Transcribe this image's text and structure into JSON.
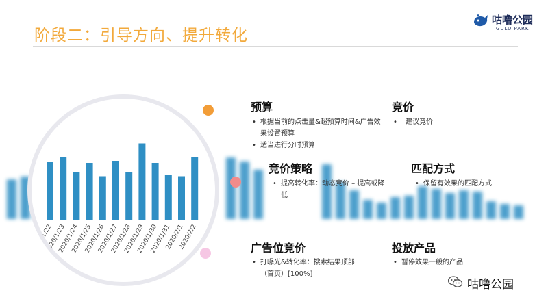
{
  "header": {
    "title": "阶段二：引导方向、提升转化",
    "logo_name": "咕噜公园",
    "logo_sub": "GULU PARK",
    "logo_icon": "whale-icon"
  },
  "sections": {
    "budget": {
      "title": "预算",
      "items": [
        "根据当前的点击量&超预算时间&广告效果设置预算",
        "适当进行分时预算"
      ]
    },
    "bidding": {
      "title": "竞价",
      "items": [
        "建议竞价"
      ]
    },
    "bid_strategy": {
      "title": "竞价策略",
      "items": [
        "提高转化率：动态竞价 – 提高或降低"
      ]
    },
    "match_type": {
      "title": "匹配方式",
      "items": [
        "保留有效果的匹配方式"
      ]
    },
    "placement_bid": {
      "title": "广告位竞价",
      "items": [
        "打曝光&转化率：搜索结果顶部（首页）[100%]"
      ]
    },
    "products": {
      "title": "投放产品",
      "items": [
        "暂停效果一般的产品"
      ]
    }
  },
  "footer": {
    "icon": "wechat-icon",
    "text": "咕噜公园"
  },
  "colors": {
    "accent": "#f2a93b",
    "bar": "#2f8fc4",
    "dot1": "#f29d38",
    "dot2": "#f28b8b",
    "dot3": "#f6c7e4"
  },
  "chart_data": {
    "type": "bar",
    "categories": [
      "2020/1/22",
      "2020/1/23",
      "2020/1/24",
      "2020/1/25",
      "2020/1/26",
      "2020/1/27",
      "2020/1/28",
      "2020/1/29",
      "2020/1/30",
      "2020/1/31",
      "2020/2/1",
      "2020/2/2"
    ],
    "values": [
      57,
      62,
      47,
      56,
      43,
      58,
      47,
      75,
      56,
      44,
      43,
      62
    ]
  }
}
